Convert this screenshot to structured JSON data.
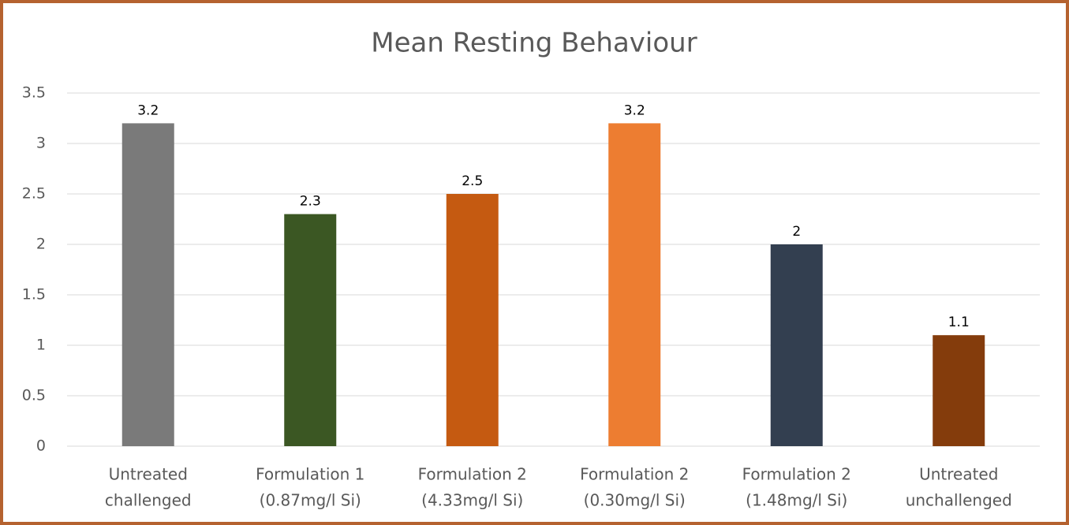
{
  "chart_data": {
    "type": "bar",
    "title": "Mean Resting Behaviour",
    "categories": [
      [
        "Untreated",
        "challenged"
      ],
      [
        "Formulation 1",
        "(0.87mg/l Si)"
      ],
      [
        "Formulation 2",
        "(4.33mg/l Si)"
      ],
      [
        "Formulation 2",
        "(0.30mg/l Si)"
      ],
      [
        "Formulation 2",
        "(1.48mg/l Si)"
      ],
      [
        "Untreated",
        "unchallenged"
      ]
    ],
    "values": [
      3.2,
      2.3,
      2.5,
      3.2,
      2,
      1.1
    ],
    "colors": [
      "#7a7a7a",
      "#3b5723",
      "#c55a11",
      "#ed7d31",
      "#333f50",
      "#843c0c"
    ],
    "ylim": [
      0,
      3.5
    ],
    "yticks": [
      0,
      0.5,
      1,
      1.5,
      2,
      2.5,
      3,
      3.5
    ],
    "grid": true
  }
}
